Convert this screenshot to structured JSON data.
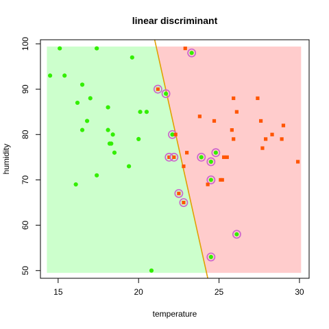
{
  "chart_data": {
    "type": "scatter",
    "title": "linear discriminant",
    "xlabel": "temperature",
    "ylabel": "humidity",
    "xlim": [
      13.9,
      30.6
    ],
    "ylim": [
      48.3,
      100.9
    ],
    "xticks": [
      15,
      20,
      25,
      30
    ],
    "yticks": [
      50,
      60,
      70,
      80,
      90,
      100
    ],
    "grid": false,
    "regions": [
      {
        "name": "green",
        "color": "#ccffcc"
      },
      {
        "name": "red",
        "color": "#ffcccc"
      }
    ],
    "region_extent": {
      "x": [
        14.3,
        30.1
      ],
      "y": [
        49.5,
        99.4
      ]
    },
    "boundary": {
      "color": "#e0a000",
      "points": [
        [
          21.0,
          100.9
        ],
        [
          24.3,
          48.3
        ]
      ]
    },
    "circle_color": "#cc66cc",
    "series": [
      {
        "color": "#33ee00",
        "marker": "circle",
        "points": [
          {
            "x": 14.5,
            "y": 93
          },
          {
            "x": 15.1,
            "y": 99
          },
          {
            "x": 15.4,
            "y": 93
          },
          {
            "x": 16.1,
            "y": 69
          },
          {
            "x": 16.2,
            "y": 87
          },
          {
            "x": 16.5,
            "y": 91
          },
          {
            "x": 16.5,
            "y": 81
          },
          {
            "x": 16.8,
            "y": 83
          },
          {
            "x": 17.0,
            "y": 88
          },
          {
            "x": 17.4,
            "y": 99
          },
          {
            "x": 17.4,
            "y": 71
          },
          {
            "x": 18.1,
            "y": 86
          },
          {
            "x": 18.1,
            "y": 81
          },
          {
            "x": 18.2,
            "y": 78
          },
          {
            "x": 18.3,
            "y": 78
          },
          {
            "x": 18.4,
            "y": 80
          },
          {
            "x": 18.5,
            "y": 76
          },
          {
            "x": 19.4,
            "y": 73
          },
          {
            "x": 19.6,
            "y": 97
          },
          {
            "x": 20.0,
            "y": 79
          },
          {
            "x": 20.1,
            "y": 85
          },
          {
            "x": 20.5,
            "y": 85
          },
          {
            "x": 20.8,
            "y": 50
          },
          {
            "x": 21.7,
            "y": 89,
            "circled": true
          },
          {
            "x": 22.1,
            "y": 80,
            "circled": true
          },
          {
            "x": 23.3,
            "y": 98,
            "circled": true
          },
          {
            "x": 23.9,
            "y": 75,
            "circled": true
          },
          {
            "x": 24.5,
            "y": 74,
            "circled": true
          },
          {
            "x": 24.5,
            "y": 70,
            "circled": true
          },
          {
            "x": 24.8,
            "y": 76,
            "circled": true
          },
          {
            "x": 24.5,
            "y": 53,
            "circled": true
          },
          {
            "x": 26.1,
            "y": 58,
            "circled": true
          }
        ]
      },
      {
        "color": "#ff5500",
        "marker": "square",
        "points": [
          {
            "x": 21.2,
            "y": 90,
            "circled": true
          },
          {
            "x": 21.9,
            "y": 75,
            "circled": true
          },
          {
            "x": 22.2,
            "y": 75,
            "circled": true
          },
          {
            "x": 22.5,
            "y": 67,
            "circled": true
          },
          {
            "x": 22.8,
            "y": 65,
            "circled": true
          },
          {
            "x": 22.3,
            "y": 80
          },
          {
            "x": 22.8,
            "y": 73
          },
          {
            "x": 22.9,
            "y": 99
          },
          {
            "x": 23.0,
            "y": 76
          },
          {
            "x": 23.8,
            "y": 84
          },
          {
            "x": 24.3,
            "y": 69
          },
          {
            "x": 24.7,
            "y": 83
          },
          {
            "x": 25.1,
            "y": 70
          },
          {
            "x": 25.2,
            "y": 70
          },
          {
            "x": 25.3,
            "y": 75
          },
          {
            "x": 25.5,
            "y": 75
          },
          {
            "x": 25.8,
            "y": 81
          },
          {
            "x": 25.9,
            "y": 88
          },
          {
            "x": 25.9,
            "y": 79
          },
          {
            "x": 26.1,
            "y": 85
          },
          {
            "x": 27.4,
            "y": 88
          },
          {
            "x": 27.6,
            "y": 83
          },
          {
            "x": 27.7,
            "y": 77
          },
          {
            "x": 27.9,
            "y": 79
          },
          {
            "x": 28.3,
            "y": 80
          },
          {
            "x": 28.9,
            "y": 79
          },
          {
            "x": 29.0,
            "y": 82
          },
          {
            "x": 29.9,
            "y": 74
          }
        ]
      }
    ]
  }
}
